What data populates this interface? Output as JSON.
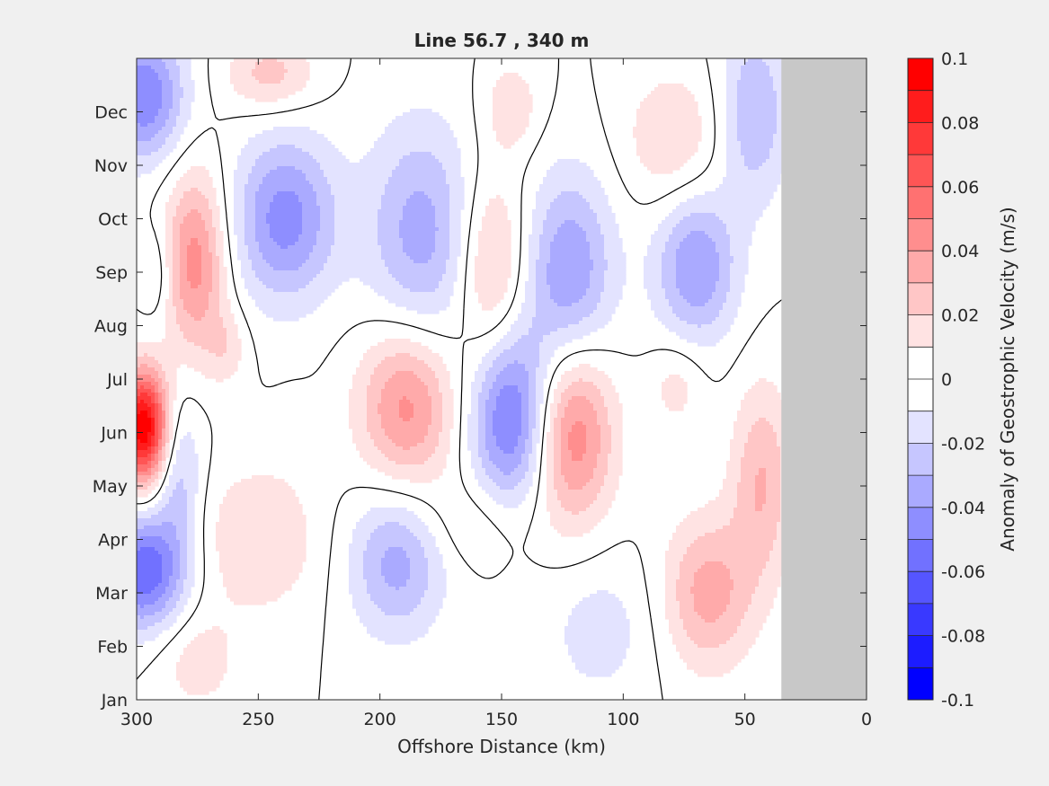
{
  "chart_data": {
    "type": "contourf",
    "title": "Line 56.7 , 340 m",
    "xlabel": "Offshore Distance (km)",
    "ylabel": "",
    "xlim": [
      300,
      0
    ],
    "x_reversed": true,
    "x_ticks": [
      "300",
      "250",
      "200",
      "150",
      "100",
      "50",
      "0"
    ],
    "x_tick_values": [
      300,
      250,
      200,
      150,
      100,
      50,
      0
    ],
    "y_ticks": [
      "Jan",
      "Feb",
      "Mar",
      "Apr",
      "May",
      "Jun",
      "Jul",
      "Aug",
      "Sep",
      "Oct",
      "Nov",
      "Dec"
    ],
    "y_tick_values": [
      1,
      2,
      3,
      4,
      5,
      6,
      7,
      8,
      9,
      10,
      11,
      12
    ],
    "ylim": [
      1,
      13
    ],
    "no_data_region_km": [
      0,
      35
    ],
    "no_data_color": "#c8c8c8",
    "zero_contour_color": "#000000",
    "colorbar": {
      "label": "Anomaly of Geostrophic Velocity (m/s)",
      "clim": [
        -0.1,
        0.1
      ],
      "tick_labels": [
        "0.1",
        "0.08",
        "0.06",
        "0.04",
        "0.02",
        "0",
        "-0.02",
        "-0.04",
        "-0.06",
        "-0.08",
        "-0.1"
      ],
      "tick_values": [
        0.1,
        0.08,
        0.06,
        0.04,
        0.02,
        0,
        -0.02,
        -0.04,
        -0.06,
        -0.08,
        -0.1
      ],
      "levels": 20,
      "max_color": "#ff0000",
      "min_color": "#0000ff",
      "mid_color": "#ffffff"
    },
    "anomaly_features": [
      {
        "x_km": 297,
        "month": 6.1,
        "value": 0.1,
        "sx_km": 7,
        "sy_month": 0.75
      },
      {
        "x_km": 276,
        "month": 9.2,
        "value": 0.045,
        "sx_km": 9,
        "sy_month": 1.2
      },
      {
        "x_km": 297,
        "month": 12.3,
        "value": -0.05,
        "sx_km": 12,
        "sy_month": 0.85
      },
      {
        "x_km": 297,
        "month": 3.4,
        "value": -0.06,
        "sx_km": 12,
        "sy_month": 0.75
      },
      {
        "x_km": 292,
        "month": 9.0,
        "value": -0.015,
        "sx_km": 5,
        "sy_month": 0.6
      },
      {
        "x_km": 283,
        "month": 5.2,
        "value": -0.025,
        "sx_km": 7,
        "sy_month": 1.0
      },
      {
        "x_km": 245,
        "month": 12.7,
        "value": 0.025,
        "sx_km": 13,
        "sy_month": 0.5
      },
      {
        "x_km": 239,
        "month": 10.0,
        "value": -0.045,
        "sx_km": 15,
        "sy_month": 1.1
      },
      {
        "x_km": 183,
        "month": 9.7,
        "value": -0.035,
        "sx_km": 16,
        "sy_month": 1.5
      },
      {
        "x_km": 189,
        "month": 6.5,
        "value": 0.045,
        "sx_km": 14,
        "sy_month": 1.1
      },
      {
        "x_km": 193,
        "month": 3.6,
        "value": -0.035,
        "sx_km": 14,
        "sy_month": 1.0
      },
      {
        "x_km": 146,
        "month": 6.3,
        "value": -0.055,
        "sx_km": 12,
        "sy_month": 1.2
      },
      {
        "x_km": 121,
        "month": 6.0,
        "value": 0.05,
        "sx_km": 12,
        "sy_month": 1.2
      },
      {
        "x_km": 154,
        "month": 9.0,
        "value": 0.03,
        "sx_km": 10,
        "sy_month": 1.3
      },
      {
        "x_km": 122,
        "month": 9.0,
        "value": -0.04,
        "sx_km": 13,
        "sy_month": 1.3
      },
      {
        "x_km": 65,
        "month": 3.0,
        "value": 0.035,
        "sx_km": 13,
        "sy_month": 1.0
      },
      {
        "x_km": 70,
        "month": 9.1,
        "value": -0.04,
        "sx_km": 12,
        "sy_month": 1.0
      },
      {
        "x_km": 43,
        "month": 5.1,
        "value": 0.03,
        "sx_km": 9,
        "sy_month": 1.3
      },
      {
        "x_km": 46,
        "month": 12.0,
        "value": -0.03,
        "sx_km": 10,
        "sy_month": 1.2
      },
      {
        "x_km": 250,
        "month": 4.0,
        "value": 0.02,
        "sx_km": 18,
        "sy_month": 1.0
      },
      {
        "x_km": 146,
        "month": 12.1,
        "value": 0.018,
        "sx_km": 8,
        "sy_month": 0.6
      },
      {
        "x_km": 80,
        "month": 11.5,
        "value": 0.02,
        "sx_km": 14,
        "sy_month": 0.9
      },
      {
        "x_km": 78,
        "month": 6.9,
        "value": 0.015,
        "sx_km": 8,
        "sy_month": 0.6
      },
      {
        "x_km": 110,
        "month": 2.3,
        "value": -0.015,
        "sx_km": 16,
        "sy_month": 1.0
      },
      {
        "x_km": 263,
        "month": 7.6,
        "value": 0.015,
        "sx_km": 6,
        "sy_month": 0.5
      },
      {
        "x_km": 160,
        "month": 4.3,
        "value": 0.012,
        "sx_km": 16,
        "sy_month": 0.6
      },
      {
        "x_km": 275,
        "month": 1.7,
        "value": 0.015,
        "sx_km": 12,
        "sy_month": 0.7
      },
      {
        "x_km": 235,
        "month": 6.0,
        "value": 0.005,
        "sx_km": 6,
        "sy_month": 0.5
      }
    ]
  }
}
